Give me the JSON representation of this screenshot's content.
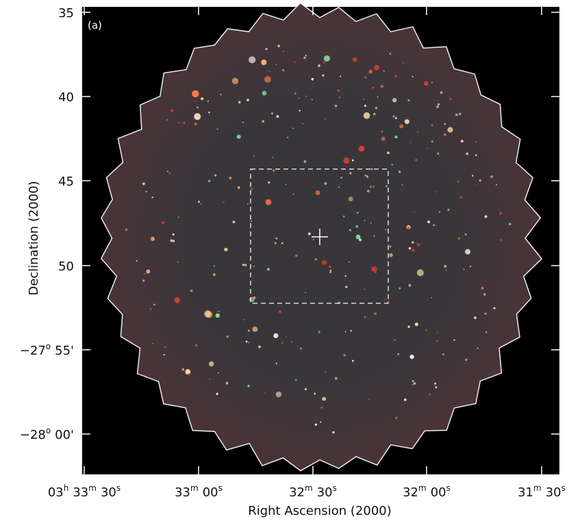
{
  "panel_label": "(a)",
  "y_axis_label": "Declination (2000)",
  "x_axis_label": "Right Ascension (2000)",
  "y_ticks": [
    [
      "35"
    ],
    [
      "40"
    ],
    [
      "45"
    ],
    [
      "50"
    ],
    [
      "−27",
      "o",
      "55'"
    ],
    [
      "−28",
      "o",
      "00'"
    ]
  ],
  "x_ticks": [
    [
      "03",
      "h",
      "33",
      "m",
      "30",
      "s"
    ],
    [
      "33",
      "m",
      "00",
      "s"
    ],
    [
      "32",
      "m",
      "30",
      "s"
    ],
    [
      "32",
      "m",
      "00",
      "s"
    ],
    [
      "31",
      "m",
      "30",
      "s"
    ]
  ]
}
